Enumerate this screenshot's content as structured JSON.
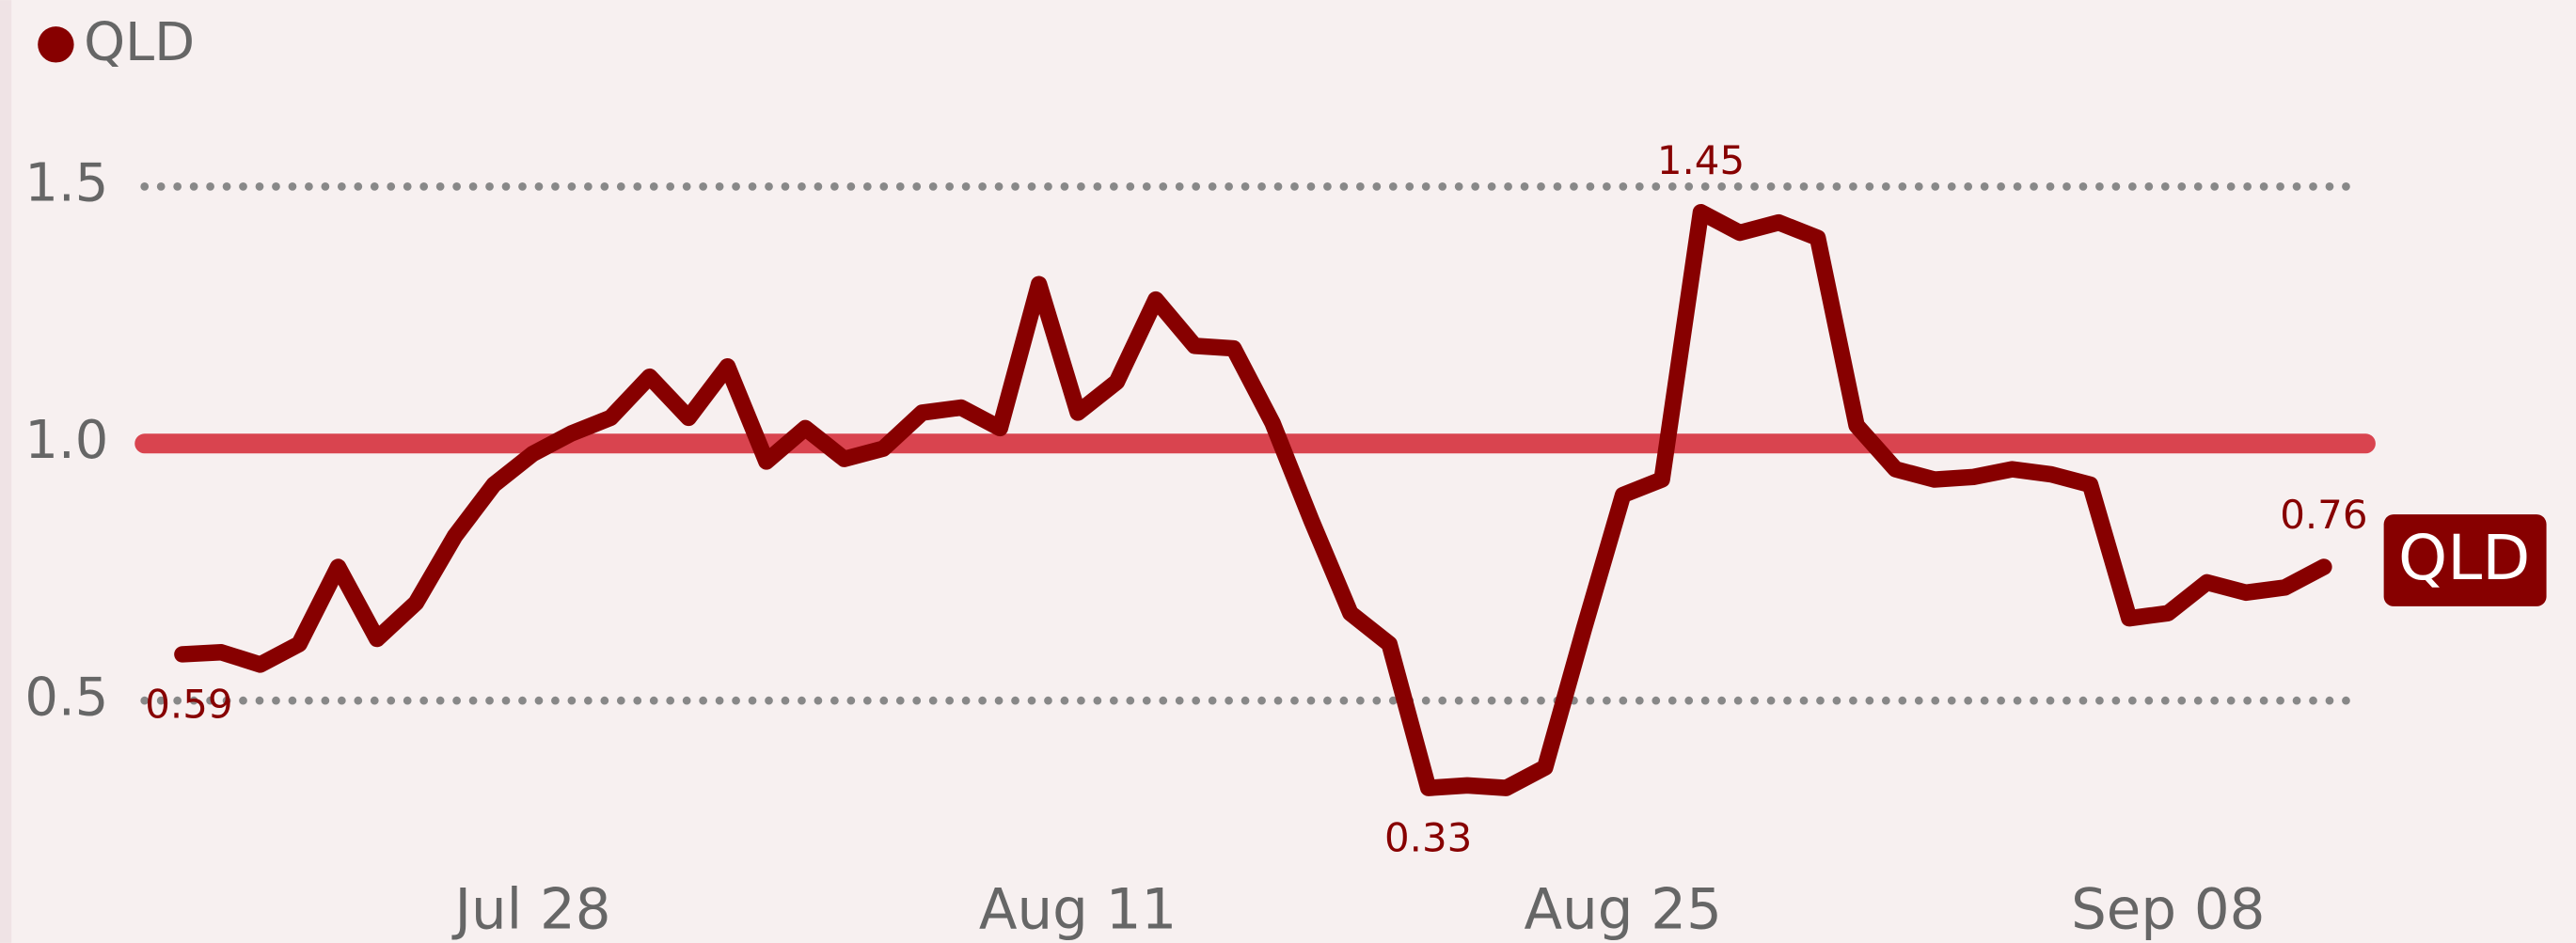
{
  "chart_data": {
    "type": "line",
    "categories": [
      null,
      null,
      null,
      null,
      null,
      null,
      null,
      null,
      null,
      "Jul 28",
      null,
      null,
      null,
      null,
      null,
      null,
      null,
      null,
      null,
      null,
      null,
      null,
      null,
      "Aug 11",
      null,
      null,
      null,
      null,
      null,
      null,
      null,
      null,
      null,
      null,
      null,
      null,
      null,
      "Aug 25",
      null,
      null,
      null,
      null,
      null,
      null,
      null,
      null,
      null,
      null,
      null,
      null,
      null,
      "Sep 08",
      null,
      null,
      null,
      null
    ],
    "series": [
      {
        "name": "QLD",
        "color": "#870000",
        "values": [
          0.59,
          0.594,
          0.57,
          0.61,
          0.76,
          0.62,
          0.69,
          0.82,
          0.92,
          0.98,
          1.02,
          1.05,
          1.13,
          1.05,
          1.15,
          0.965,
          1.03,
          0.97,
          0.99,
          1.06,
          1.07,
          1.03,
          1.31,
          1.06,
          1.12,
          1.28,
          1.19,
          1.185,
          1.04,
          0.85,
          0.67,
          0.61,
          0.33,
          0.335,
          0.33,
          0.37,
          0.64,
          0.9,
          0.93,
          1.45,
          1.41,
          1.43,
          1.4,
          1.035,
          0.95,
          0.93,
          0.935,
          0.95,
          0.94,
          0.92,
          0.66,
          0.67,
          0.73,
          0.71,
          0.72,
          0.76
        ],
        "value_labels": [
          "0.59",
          null,
          null,
          null,
          null,
          null,
          null,
          null,
          null,
          null,
          null,
          null,
          null,
          null,
          null,
          null,
          null,
          null,
          null,
          null,
          null,
          null,
          null,
          null,
          null,
          null,
          null,
          null,
          null,
          null,
          null,
          null,
          "0.33",
          null,
          null,
          null,
          null,
          null,
          null,
          "1.45",
          null,
          null,
          null,
          null,
          null,
          null,
          null,
          null,
          null,
          null,
          null,
          null,
          null,
          null,
          null,
          "0.76"
        ]
      }
    ],
    "ylim": [
      0.25,
      1.65
    ],
    "yticks": [
      0.5,
      {
        "value": 1,
        "label": "1.0"
      },
      1.5
    ],
    "grid": true,
    "reference_line": {
      "value": 1,
      "color": "#d9444f"
    },
    "legend": "top-left",
    "end_label": true
  }
}
